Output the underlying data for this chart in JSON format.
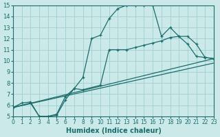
{
  "xlabel": "Humidex (Indice chaleur)",
  "xlim": [
    0,
    23
  ],
  "ylim": [
    5,
    15
  ],
  "xticks": [
    0,
    1,
    2,
    3,
    4,
    5,
    6,
    7,
    8,
    9,
    10,
    11,
    12,
    13,
    14,
    15,
    16,
    17,
    18,
    19,
    20,
    21,
    22,
    23
  ],
  "yticks": [
    5,
    6,
    7,
    8,
    9,
    10,
    11,
    12,
    13,
    14,
    15
  ],
  "bg_color": "#cce9e9",
  "line_color": "#1a6b6b",
  "grid_color": "#9ecece",
  "line1_x": [
    0,
    1,
    2,
    3,
    4,
    5,
    6,
    7,
    8,
    9,
    10,
    11,
    12,
    13,
    14,
    15,
    16,
    17,
    18,
    19,
    20,
    21,
    22,
    23
  ],
  "line1_y": [
    5.8,
    6.2,
    6.3,
    5.0,
    5.0,
    5.1,
    6.5,
    7.5,
    8.5,
    12.0,
    12.3,
    13.8,
    14.7,
    15.0,
    15.0,
    15.0,
    15.0,
    12.2,
    13.0,
    12.2,
    11.5,
    10.4,
    10.3,
    10.2
  ],
  "line2_x": [
    0,
    2,
    3,
    4,
    5,
    6,
    7,
    8,
    10,
    11,
    12,
    13,
    14,
    15,
    16,
    17,
    18,
    19,
    20,
    21,
    22,
    23
  ],
  "line2_y": [
    5.8,
    6.2,
    5.0,
    5.0,
    5.2,
    6.8,
    7.5,
    7.4,
    7.8,
    11.0,
    11.0,
    11.0,
    11.2,
    11.4,
    11.6,
    11.8,
    12.1,
    12.2,
    12.2,
    11.5,
    10.3,
    10.2
  ],
  "line3_x": [
    0,
    23
  ],
  "line3_y": [
    5.8,
    9.8
  ],
  "line4_x": [
    0,
    23
  ],
  "line4_y": [
    5.8,
    10.2
  ]
}
